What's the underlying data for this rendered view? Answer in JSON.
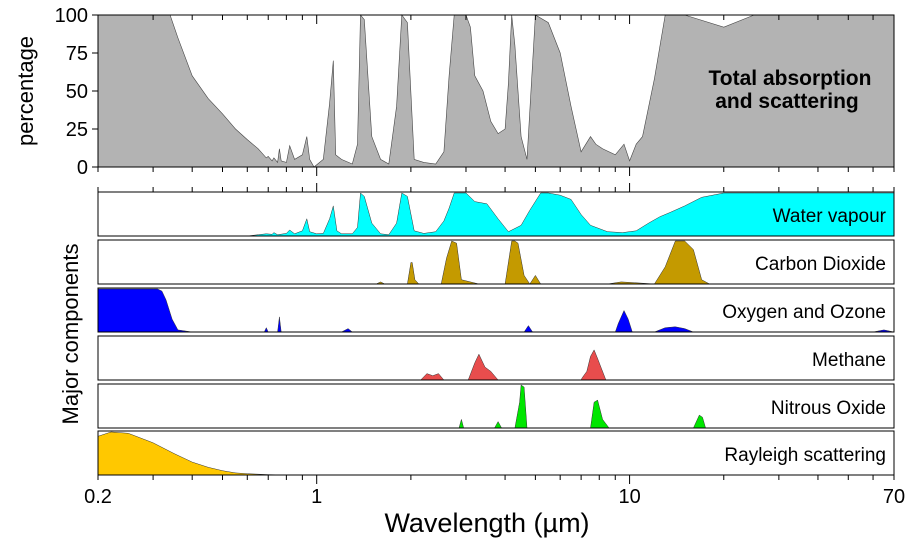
{
  "chart_data": {
    "type": "area",
    "xlabel": "Wavelength (µm)",
    "x_scale": "log",
    "xlim": [
      0.2,
      70
    ],
    "x_ticks": [
      {
        "value": 0.2,
        "label": "0.2"
      },
      {
        "value": 1,
        "label": "1"
      },
      {
        "value": 10,
        "label": "10"
      },
      {
        "value": 70,
        "label": "70"
      }
    ],
    "top_panel": {
      "ylabel": "percentage",
      "ylim": [
        0,
        100
      ],
      "y_ticks": [
        "0",
        "25",
        "50",
        "75",
        "100"
      ],
      "annotation": [
        "Total absorption",
        "and scattering"
      ],
      "color": "#b3b3b3",
      "x": [
        0.2,
        0.34,
        0.36,
        0.4,
        0.45,
        0.5,
        0.55,
        0.6,
        0.65,
        0.69,
        0.7,
        0.72,
        0.73,
        0.75,
        0.76,
        0.77,
        0.8,
        0.82,
        0.85,
        0.9,
        0.93,
        0.95,
        0.98,
        1.05,
        1.1,
        1.13,
        1.15,
        1.2,
        1.3,
        1.35,
        1.38,
        1.42,
        1.5,
        1.6,
        1.7,
        1.8,
        1.87,
        1.95,
        2.05,
        2.2,
        2.4,
        2.55,
        2.65,
        2.75,
        2.85,
        3.0,
        3.1,
        3.2,
        3.4,
        3.6,
        3.8,
        4.0,
        4.1,
        4.2,
        4.3,
        4.5,
        4.7,
        5.0,
        5.5,
        6.0,
        6.5,
        7.0,
        7.5,
        7.8,
        8.2,
        9.0,
        9.6,
        10.0,
        10.5,
        11.0,
        12.0,
        13.0,
        14.0,
        15.0,
        20.0,
        25.0,
        30.0,
        70.0
      ],
      "y": [
        100,
        100,
        85,
        60,
        45,
        35,
        25,
        18,
        12,
        6,
        7,
        4,
        6,
        3,
        12,
        4,
        3,
        14,
        5,
        8,
        20,
        5,
        0,
        5,
        42,
        70,
        8,
        5,
        2,
        15,
        100,
        97,
        20,
        5,
        2,
        40,
        100,
        95,
        5,
        3,
        2,
        10,
        60,
        100,
        100,
        100,
        92,
        60,
        50,
        30,
        22,
        25,
        55,
        100,
        80,
        20,
        5,
        100,
        95,
        75,
        40,
        10,
        20,
        15,
        12,
        8,
        15,
        4,
        15,
        20,
        58,
        100,
        100,
        100,
        92,
        100,
        100,
        100
      ]
    },
    "series": [
      {
        "name": "Water vapour",
        "color": "#00ffff",
        "x": [
          0.2,
          0.6,
          0.65,
          0.69,
          0.72,
          0.73,
          0.75,
          0.8,
          0.82,
          0.85,
          0.9,
          0.93,
          0.95,
          1.0,
          1.05,
          1.1,
          1.13,
          1.16,
          1.2,
          1.3,
          1.35,
          1.38,
          1.42,
          1.5,
          1.6,
          1.7,
          1.8,
          1.87,
          1.95,
          2.05,
          2.2,
          2.4,
          2.55,
          2.65,
          2.75,
          2.85,
          3.0,
          3.2,
          3.5,
          3.8,
          4.1,
          4.5,
          4.8,
          5.2,
          5.5,
          6.0,
          6.5,
          7.0,
          7.5,
          8.5,
          9.5,
          10.5,
          11.5,
          12.5,
          13.5,
          15.0,
          17.0,
          20.0,
          25.0,
          70.0
        ],
        "values": [
          0,
          0,
          3,
          5,
          4,
          8,
          3,
          6,
          14,
          5,
          12,
          40,
          10,
          5,
          6,
          40,
          70,
          12,
          5,
          5,
          20,
          100,
          92,
          30,
          5,
          3,
          30,
          100,
          92,
          12,
          6,
          10,
          35,
          65,
          100,
          100,
          100,
          80,
          75,
          40,
          10,
          25,
          60,
          100,
          100,
          95,
          85,
          50,
          25,
          10,
          8,
          12,
          30,
          45,
          55,
          70,
          90,
          100,
          100,
          100
        ]
      },
      {
        "name": "Carbon Dioxide",
        "color": "#c49a00",
        "x": [
          0.2,
          1.55,
          1.6,
          1.65,
          1.95,
          2.0,
          2.02,
          2.06,
          2.12,
          2.5,
          2.6,
          2.7,
          2.8,
          2.9,
          3.3,
          4.0,
          4.2,
          4.3,
          4.4,
          4.6,
          4.8,
          5.0,
          5.2,
          8.5,
          9.4,
          10.4,
          12.0,
          13.0,
          14.0,
          15.0,
          16.0,
          17.0,
          18.0,
          70.0
        ],
        "values": [
          0,
          0,
          5,
          0,
          0,
          50,
          50,
          10,
          0,
          0,
          60,
          100,
          95,
          10,
          0,
          0,
          100,
          100,
          95,
          20,
          0,
          20,
          0,
          0,
          5,
          3,
          0,
          40,
          100,
          100,
          80,
          10,
          0,
          0
        ]
      },
      {
        "name": "Oxygen and Ozone",
        "color": "#0000ff",
        "x": [
          0.2,
          0.3,
          0.31,
          0.32,
          0.33,
          0.345,
          0.36,
          0.4,
          0.68,
          0.69,
          0.7,
          0.75,
          0.76,
          0.77,
          1.2,
          1.26,
          1.3,
          4.6,
          4.75,
          4.9,
          9.0,
          9.2,
          9.6,
          9.9,
          10.2,
          12.0,
          13.0,
          14.0,
          15.0,
          16.0,
          60.0,
          65.0,
          70.0
        ],
        "values": [
          100,
          100,
          100,
          95,
          75,
          30,
          5,
          0,
          0,
          10,
          0,
          0,
          35,
          0,
          0,
          8,
          0,
          0,
          15,
          0,
          0,
          20,
          50,
          30,
          0,
          0,
          10,
          12,
          8,
          0,
          0,
          5,
          0
        ]
      },
      {
        "name": "Methane",
        "color": "#e84d4d",
        "x": [
          0.2,
          2.15,
          2.25,
          2.35,
          2.45,
          2.55,
          3.05,
          3.2,
          3.3,
          3.45,
          3.6,
          3.8,
          7.0,
          7.05,
          7.3,
          7.5,
          7.7,
          7.9,
          8.1,
          8.4,
          70.0
        ],
        "values": [
          0,
          0,
          15,
          10,
          15,
          0,
          0,
          40,
          60,
          30,
          20,
          0,
          0,
          5,
          20,
          55,
          70,
          50,
          30,
          0,
          0
        ]
      },
      {
        "name": "Nitrous Oxide",
        "color": "#00e600",
        "x": [
          0.2,
          2.85,
          2.9,
          2.95,
          3.7,
          3.8,
          3.9,
          4.3,
          4.45,
          4.5,
          4.6,
          4.7,
          7.5,
          7.7,
          7.9,
          8.2,
          8.6,
          16.0,
          16.7,
          17.1,
          17.5,
          70.0
        ],
        "values": [
          0,
          0,
          20,
          0,
          0,
          15,
          0,
          0,
          60,
          100,
          95,
          0,
          0,
          60,
          65,
          20,
          0,
          0,
          30,
          25,
          0,
          0
        ]
      },
      {
        "name": "Rayleigh scattering",
        "color": "#ffc800",
        "x": [
          0.2,
          0.22,
          0.25,
          0.3,
          0.35,
          0.4,
          0.45,
          0.5,
          0.55,
          0.6,
          0.7,
          0.8,
          70.0
        ],
        "values": [
          90,
          100,
          97,
          75,
          50,
          30,
          18,
          10,
          5,
          3,
          1,
          0,
          0
        ]
      }
    ],
    "components_label": "Major components",
    "grid": false
  }
}
